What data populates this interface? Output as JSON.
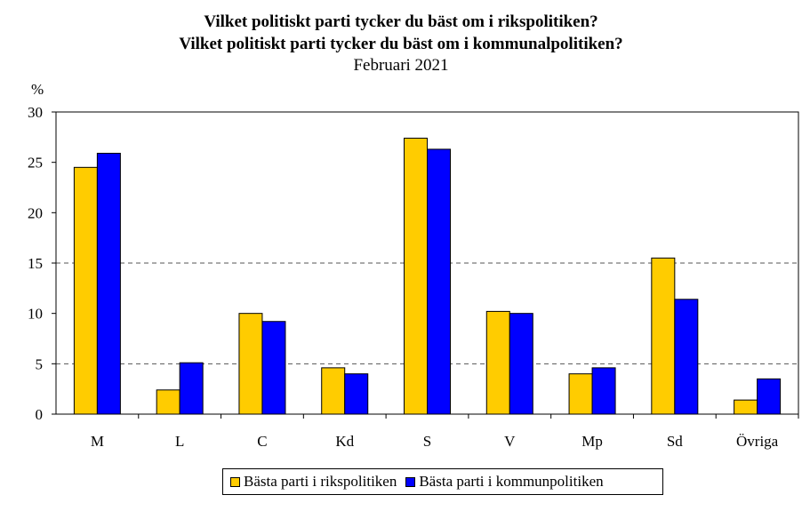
{
  "chart_data": {
    "type": "bar",
    "title_lines": [
      "Vilket politiskt parti tycker du bäst om i rikspolitiken?",
      "Vilket politiskt parti tycker du bäst om i kommunalpolitiken?"
    ],
    "subtitle": "Februari 2021",
    "ylabel": "%",
    "xlabel": "",
    "ylim": [
      0,
      30
    ],
    "yticks": [
      0,
      5,
      10,
      15,
      20,
      25,
      30
    ],
    "gridlines": [
      5,
      15
    ],
    "legend_position": "bottom",
    "categories": [
      "M",
      "L",
      "C",
      "Kd",
      "S",
      "V",
      "Mp",
      "Sd",
      "Övriga"
    ],
    "series": [
      {
        "name": "Bästa parti i rikspolitiken",
        "color": "#FFCC00",
        "values": [
          24.5,
          2.4,
          10.0,
          4.6,
          27.4,
          10.2,
          4.0,
          15.5,
          1.4
        ]
      },
      {
        "name": "Bästa parti i kommunpolitiken",
        "color": "#0000FF",
        "values": [
          25.9,
          5.1,
          9.2,
          4.0,
          26.3,
          10.0,
          4.6,
          11.4,
          3.5
        ]
      }
    ]
  }
}
